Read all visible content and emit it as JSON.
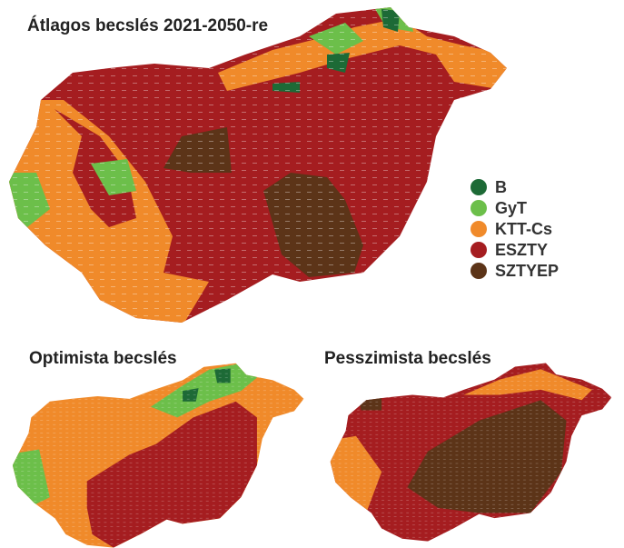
{
  "maps": [
    {
      "title": "Átlagos becslés 2021-2050-re"
    },
    {
      "title": "Optimista becslés"
    },
    {
      "title": "Pesszimista becslés"
    }
  ],
  "legend": [
    {
      "label": "B",
      "color": "#1d6a36"
    },
    {
      "label": "GyT",
      "color": "#6cbf4a"
    },
    {
      "label": "KTT-Cs",
      "color": "#f08a2a"
    },
    {
      "label": "ESZTY",
      "color": "#a51d20"
    },
    {
      "label": "SZTYEP",
      "color": "#5c3418"
    }
  ]
}
